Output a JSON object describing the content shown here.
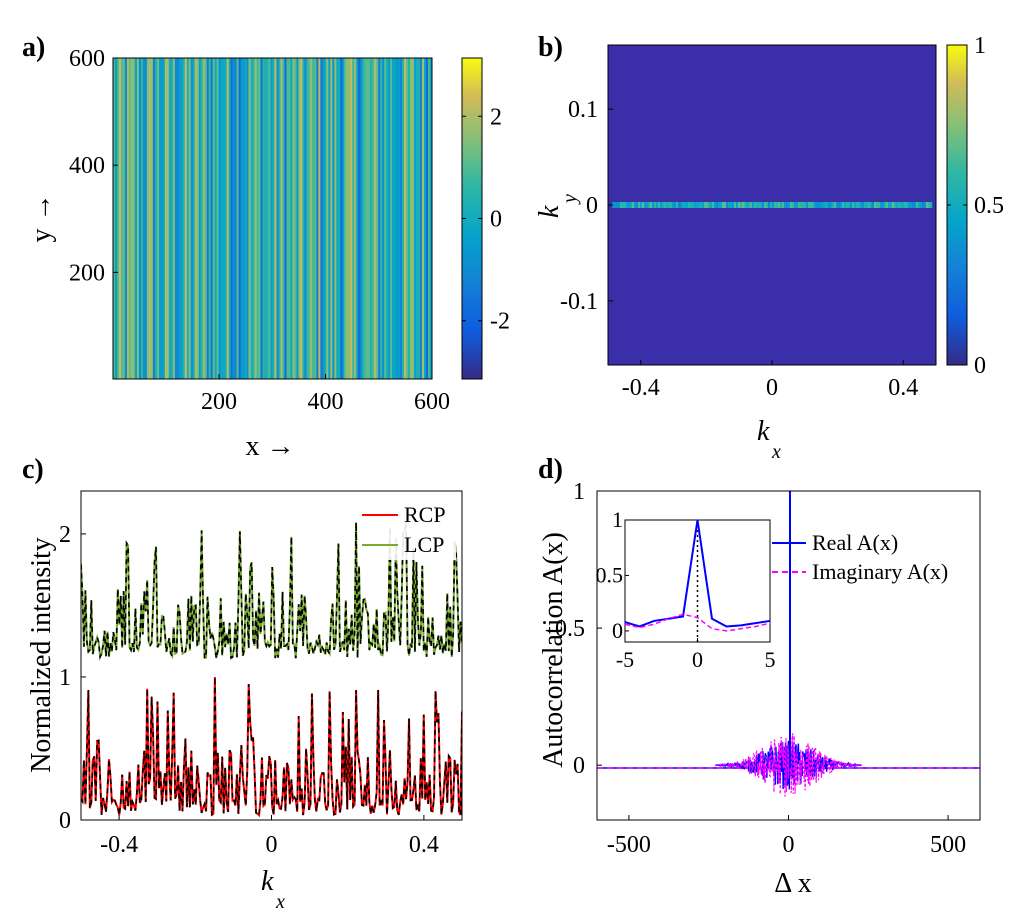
{
  "panels": {
    "a": {
      "label": "a)"
    },
    "b": {
      "label": "b)"
    },
    "c": {
      "label": "c)"
    },
    "d": {
      "label": "d)"
    }
  },
  "colors": {
    "rcp": "#ff0000",
    "lcp": "#77ac30",
    "real": "#0000ff",
    "imag": "#ff00ff",
    "bg_dark": "#3a2fa8"
  },
  "chart_data": [
    {
      "id": "a",
      "type": "heatmap",
      "title": "",
      "xlabel": "x →",
      "ylabel": "y →",
      "xlim": [
        1,
        600
      ],
      "ylim": [
        1,
        600
      ],
      "xticks": [
        200,
        400,
        600
      ],
      "yticks": [
        200,
        400,
        600
      ],
      "colorbar": {
        "ticks": [
          -2,
          0,
          2
        ],
        "range": [
          -3.14,
          3.14
        ]
      },
      "description_values": "vertical stripes: phase varies along x only, uniform along y"
    },
    {
      "id": "b",
      "type": "heatmap",
      "xlabel": "k",
      "xlabel_sub": "x",
      "ylabel": "k",
      "ylabel_sub": "y",
      "xlim": [
        -0.5,
        0.5
      ],
      "ylim": [
        -0.167,
        0.167
      ],
      "xticks": [
        -0.4,
        0,
        0.4
      ],
      "yticks": [
        -0.1,
        0,
        0.1
      ],
      "colorbar": {
        "ticks": [
          0,
          0.5,
          1
        ],
        "range": [
          0,
          1
        ]
      }
    },
    {
      "id": "c",
      "type": "line",
      "xlabel": "k",
      "xlabel_sub": "x",
      "ylabel": "Normalized intensity",
      "xlim": [
        -0.5,
        0.5
      ],
      "ylim": [
        0,
        2.3
      ],
      "xticks": [
        -0.4,
        0,
        0.4
      ],
      "yticks": [
        0,
        1,
        2
      ],
      "series": [
        {
          "name": "RCP",
          "offset": 0
        },
        {
          "name": "LCP",
          "offset": 1.1
        }
      ]
    },
    {
      "id": "d",
      "type": "line",
      "xlabel": "Δ x",
      "ylabel": "Autocorrelation A(x)",
      "xlim": [
        -600,
        600
      ],
      "ylim": [
        -0.2,
        1
      ],
      "xticks": [
        -500,
        0,
        500
      ],
      "yticks": [
        0,
        0.5,
        1
      ],
      "series": [
        {
          "name": "Real A(x)"
        },
        {
          "name": "Imaginary A(x)"
        }
      ],
      "inset": {
        "xlim": [
          -5,
          5
        ],
        "ylim": [
          -0.1,
          1
        ],
        "xticks": [
          -5,
          0,
          5
        ],
        "yticks": [
          0,
          0.5,
          1
        ],
        "real": [
          [
            -5,
            0.08
          ],
          [
            -4,
            0.04
          ],
          [
            -3,
            0.09
          ],
          [
            -2,
            0.11
          ],
          [
            -1,
            0.13
          ],
          [
            0,
            1.0
          ],
          [
            1,
            0.11
          ],
          [
            2,
            0.04
          ],
          [
            3,
            0.05
          ],
          [
            4,
            0.07
          ],
          [
            5,
            0.09
          ]
        ],
        "imag": [
          [
            -5,
            0.06
          ],
          [
            -4,
            0.03
          ],
          [
            -3,
            0.06
          ],
          [
            -2,
            0.11
          ],
          [
            -1,
            0.15
          ],
          [
            0,
            0.12
          ],
          [
            1,
            0.02
          ],
          [
            2,
            0.0
          ],
          [
            3,
            0.02
          ],
          [
            4,
            0.04
          ],
          [
            5,
            0.07
          ]
        ]
      }
    }
  ]
}
